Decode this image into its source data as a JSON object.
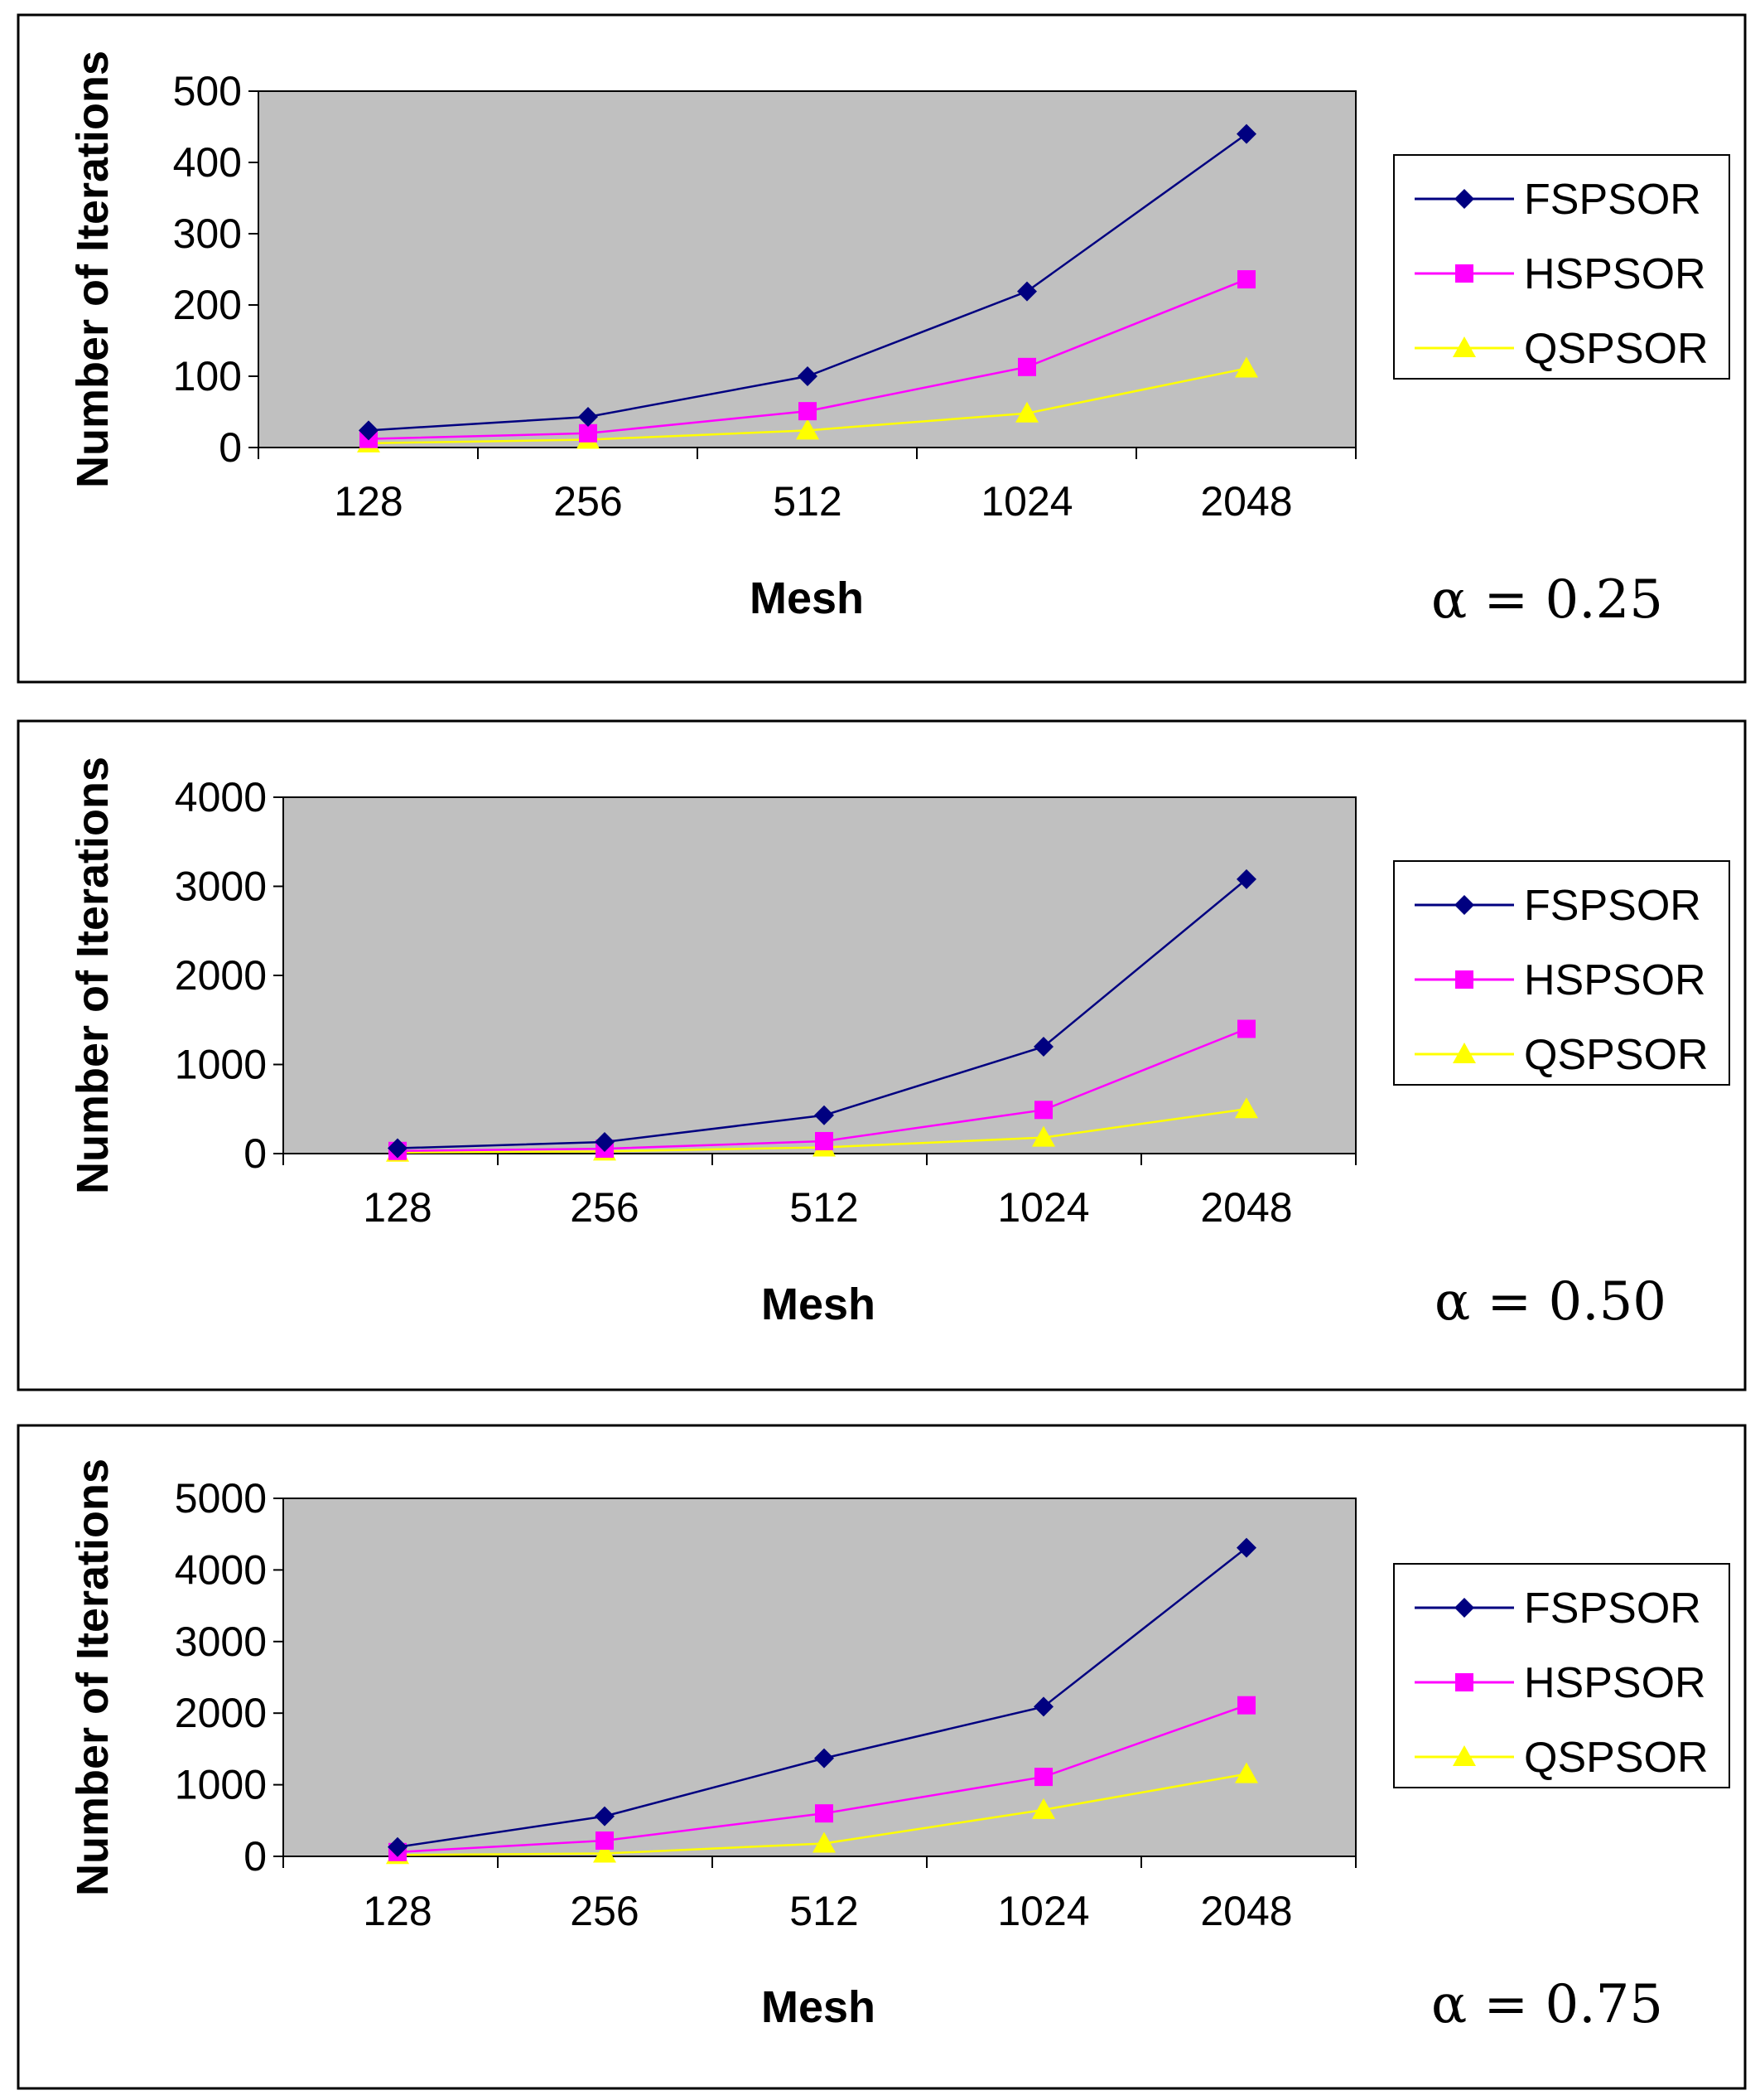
{
  "series_styles": [
    {
      "name": "FSPSOR",
      "color": "#000080",
      "marker": "diamond"
    },
    {
      "name": "HSPSOR",
      "color": "#FF00FF",
      "marker": "square"
    },
    {
      "name": "QSPSOR",
      "color": "#FFFF00",
      "marker": "triangle"
    }
  ],
  "plot_background": "#C0C0C0",
  "chart_data": [
    {
      "type": "line",
      "title": "",
      "annotation": "α = 0.25",
      "xlabel": "Mesh",
      "ylabel": "Number of Iterations",
      "categories": [
        "128",
        "256",
        "512",
        "1024",
        "2048"
      ],
      "ylim": [
        0,
        500
      ],
      "yticks": [
        0,
        100,
        200,
        300,
        400,
        500
      ],
      "series": [
        {
          "name": "FSPSOR",
          "values": [
            24,
            43,
            100,
            219,
            440
          ]
        },
        {
          "name": "HSPSOR",
          "values": [
            12,
            20,
            51,
            113,
            236
          ]
        },
        {
          "name": "QSPSOR",
          "values": [
            6,
            11,
            24,
            48,
            111
          ]
        }
      ]
    },
    {
      "type": "line",
      "title": "",
      "annotation": "α = 0.50",
      "xlabel": "Mesh",
      "ylabel": "Number of Iterations",
      "categories": [
        "128",
        "256",
        "512",
        "1024",
        "2048"
      ],
      "ylim": [
        0,
        4000
      ],
      "yticks": [
        0,
        1000,
        2000,
        3000,
        4000
      ],
      "series": [
        {
          "name": "FSPSOR",
          "values": [
            60,
            130,
            430,
            1200,
            3080
          ]
        },
        {
          "name": "HSPSOR",
          "values": [
            30,
            55,
            140,
            490,
            1400
          ]
        },
        {
          "name": "QSPSOR",
          "values": [
            12,
            25,
            70,
            180,
            500
          ]
        }
      ]
    },
    {
      "type": "line",
      "title": "",
      "annotation": "α = 0.75",
      "xlabel": "Mesh",
      "ylabel": "Number of Iterations",
      "categories": [
        "128",
        "256",
        "512",
        "1024",
        "2048"
      ],
      "ylim": [
        0,
        5000
      ],
      "yticks": [
        0,
        1000,
        2000,
        3000,
        4000,
        5000
      ],
      "series": [
        {
          "name": "FSPSOR",
          "values": [
            130,
            560,
            1370,
            2090,
            4310
          ]
        },
        {
          "name": "HSPSOR",
          "values": [
            60,
            220,
            600,
            1110,
            2110
          ]
        },
        {
          "name": "QSPSOR",
          "values": [
            20,
            40,
            180,
            650,
            1150
          ]
        }
      ]
    }
  ]
}
